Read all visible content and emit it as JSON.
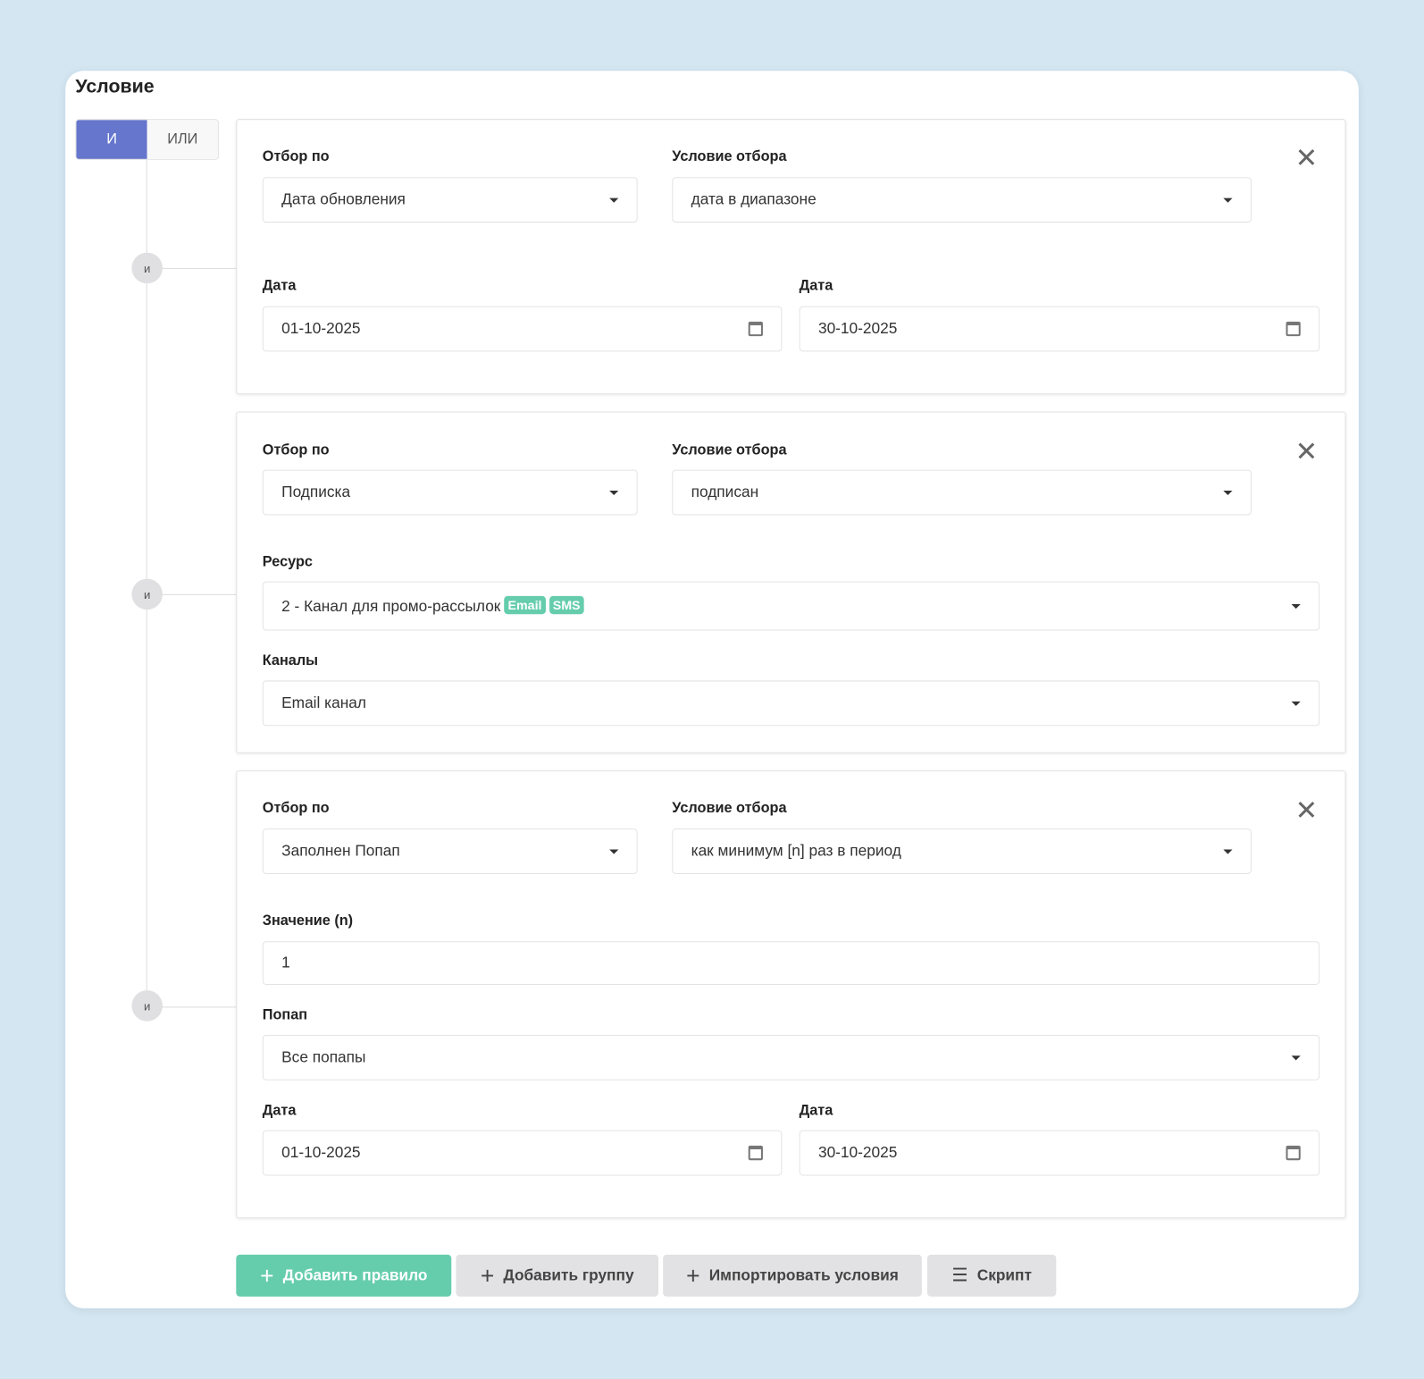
{
  "title": "Условие",
  "toggle": {
    "and": "И",
    "or": "ИЛИ",
    "active": "and"
  },
  "connector": "и",
  "rules": [
    {
      "filter_label": "Отбор по",
      "filter_value": "Дата обновления",
      "cond_label": "Условие отбора",
      "cond_value": "дата в диапазоне",
      "date_label": "Дата",
      "date_from": "01-10-2025",
      "date_to": "30-10-2025"
    },
    {
      "filter_label": "Отбор по",
      "filter_value": "Подписка",
      "cond_label": "Условие отбора",
      "cond_value": "подписан",
      "resource_label": "Ресурс",
      "resource_value": "2 - Канал для промо-рассылок",
      "resource_badges": [
        "Email",
        "SMS"
      ],
      "channels_label": "Каналы",
      "channels_value": "Email канал"
    },
    {
      "filter_label": "Отбор по",
      "filter_value": "Заполнен Попап",
      "cond_label": "Условие отбора",
      "cond_value": "как минимум [n] раз в период",
      "n_label": "Значение (n)",
      "n_value": "1",
      "popup_label": "Попап",
      "popup_value": "Все попапы",
      "date_label": "Дата",
      "date_from": "01-10-2025",
      "date_to": "30-10-2025"
    }
  ],
  "buttons": {
    "add_rule": "Добавить правило",
    "add_group": "Добавить группу",
    "import": "Импортировать условия",
    "script": "Скрипт"
  },
  "colors": {
    "accent": "#6576cc",
    "green": "#66cdac"
  }
}
